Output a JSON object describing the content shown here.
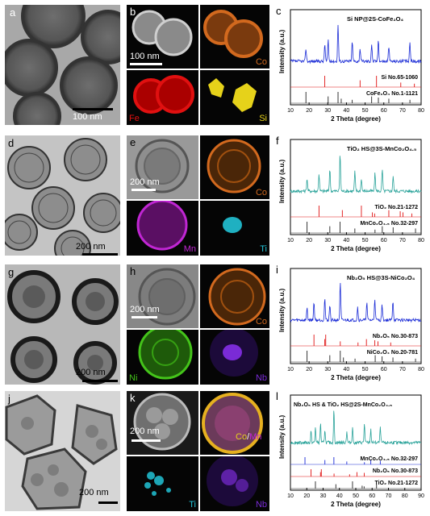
{
  "rows": [
    {
      "tem": {
        "label": "a",
        "scale": "100 nm"
      },
      "maps": {
        "label": "b",
        "scale": "100 nm",
        "elements": [
          "Co",
          "Fe",
          "Si"
        ]
      },
      "xrd": {
        "label": "c",
        "sample": "Si NP@2S-CoFe₂O₄",
        "refs": [
          "Si No.65-1060",
          "CoFe₂O₄ No.1-1121"
        ]
      }
    },
    {
      "tem": {
        "label": "d",
        "scale": "200 nm"
      },
      "maps": {
        "label": "e",
        "scale": "200 nm",
        "elements": [
          "Co",
          "Mn",
          "Ti"
        ]
      },
      "xrd": {
        "label": "f",
        "sample": "TiO₂ HS@3S-MnCo₂O₄.₅",
        "refs": [
          "TiO₂ No.21-1272",
          "MnCo₂O₄.₅ No.32-297"
        ]
      }
    },
    {
      "tem": {
        "label": "g",
        "scale": "200 nm"
      },
      "maps": {
        "label": "h",
        "scale": "200 nm",
        "elements": [
          "Co",
          "Ni",
          "Nb"
        ]
      },
      "xrd": {
        "label": "i",
        "sample": "Nb₂O₅ HS@3S-NiCo₂O₄",
        "refs": [
          "Nb₂O₅ No.30-873",
          "NiCo₂O₄ No.20-781"
        ]
      }
    },
    {
      "tem": {
        "label": "j",
        "scale": "200 nm"
      },
      "maps": {
        "label": "k",
        "scale": "200 nm",
        "elements": [
          "Co",
          "Mn",
          "Ti",
          "Nb"
        ]
      },
      "xrd": {
        "label": "l",
        "sample": "Nb₂O₅ HS & TiO₂ HS@2S-MnCo₂O₄.₅",
        "refs": [
          "MnCo₂O₄.₅ No.32-297",
          "Nb₂O₅ No.30-873",
          "TiO₂ No.21-1272"
        ]
      }
    }
  ],
  "xrd_axes": {
    "xlabel": "2 Theta (degree)",
    "ylabel": "Intensity (a.u.)",
    "xticks_80": [
      "10",
      "20",
      "30",
      "40",
      "50",
      "60",
      "70",
      "80"
    ],
    "xticks_90": [
      "10",
      "20",
      "30",
      "40",
      "50",
      "60",
      "70",
      "80",
      "90"
    ]
  },
  "colors": {
    "c": "#1a2bd6",
    "f": "#2aa39a",
    "i": "#1a2bd6",
    "l": "#2aa39a",
    "ref_red": "#e01010",
    "ref_black": "#222222",
    "ref_blue": "#1a2bd6",
    "Co": "#d2691e",
    "Fe": "#e01010",
    "Si": "#e6d21a",
    "Mn": "#c026d3",
    "Ti": "#22c3d6",
    "Ni": "#44c41a",
    "Nb": "#7a2bd6"
  },
  "chart_data": [
    {
      "type": "line",
      "panel": "c",
      "xlim": [
        10,
        80
      ],
      "xlabel": "2 Theta (degree)",
      "ylabel": "Intensity (a.u.)",
      "peaks_sample": [
        18.3,
        28.4,
        30.2,
        35.5,
        43.1,
        47.3,
        53.5,
        57.1,
        62.7,
        74.0
      ],
      "ref1_sticks": [
        28.4,
        47.3,
        56.1,
        69.1,
        76.4
      ],
      "ref2_sticks": [
        18.3,
        30.2,
        35.5,
        37.2,
        43.1,
        53.5,
        57.1,
        62.7,
        74.0
      ]
    },
    {
      "type": "line",
      "panel": "f",
      "xlim": [
        10,
        80
      ],
      "xlabel": "2 Theta (degree)",
      "ylabel": "Intensity (a.u.)",
      "peaks_sample": [
        18.9,
        25.3,
        31.1,
        36.6,
        44.5,
        48.0,
        55.3,
        59.2,
        65.0
      ],
      "ref1_sticks": [
        25.3,
        37.8,
        48.0,
        53.9,
        55.1,
        62.7,
        68.8,
        70.3,
        75.0
      ],
      "ref2_sticks": [
        18.9,
        31.1,
        36.6,
        44.5,
        55.3,
        59.2,
        65.0,
        77.0
      ]
    },
    {
      "type": "line",
      "panel": "i",
      "xlim": [
        10,
        80
      ],
      "xlabel": "2 Theta (degree)",
      "ylabel": "Intensity (a.u.)",
      "peaks_sample": [
        18.9,
        22.6,
        28.4,
        31.1,
        36.7,
        46.0,
        50.9,
        55.2,
        59.1,
        64.9
      ],
      "ref1_sticks": [
        22.6,
        28.4,
        28.9,
        36.7,
        46.2,
        50.7,
        55.2,
        56.9,
        63.7
      ],
      "ref2_sticks": [
        18.9,
        31.1,
        36.7,
        38.4,
        44.6,
        55.4,
        59.1,
        64.9,
        77.0
      ]
    },
    {
      "type": "line",
      "panel": "l",
      "xlim": [
        10,
        90
      ],
      "xlabel": "2 Theta (degree)",
      "ylabel": "Intensity (a.u.)",
      "peaks_sample": [
        22.6,
        25.3,
        28.4,
        31.1,
        36.6,
        44.5,
        48.0,
        55.3,
        59.2,
        65.0
      ],
      "ref1_sticks": [
        18.9,
        31.1,
        36.6,
        44.5,
        55.3,
        59.2,
        65.0
      ],
      "ref2_sticks": [
        22.6,
        28.4,
        28.9,
        36.7,
        46.2,
        50.7,
        55.2
      ],
      "ref3_sticks": [
        25.3,
        37.8,
        48.0,
        53.9,
        55.1,
        62.7
      ]
    }
  ]
}
